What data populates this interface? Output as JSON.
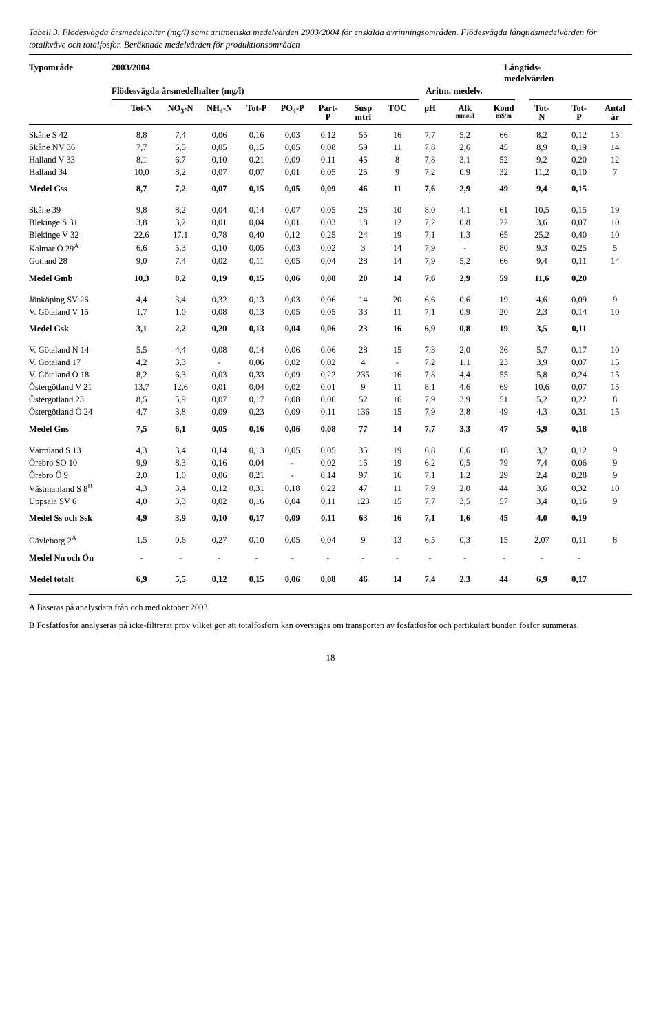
{
  "caption": "Tabell 3. Flödesvägda årsmedelhalter (mg/l) samt aritmetiska medelvärden 2003/2004 för enskilda avrinningsområden. Flödesvägda långtidsmedelvärden för totalkväve och totalfosfor. Beräknade medelvärden för produktionsområden",
  "header": {
    "typomrade": "Typområde",
    "year": "2003/2004",
    "long": "Långtids-\nmedelvärden",
    "flow": "Flödesvägda årsmedelhalter (mg/l)",
    "arit": "Aritm. medelv."
  },
  "columns": [
    "Tot-N",
    "NO3-N",
    "NH4-N",
    "Tot-P",
    "PO4-P",
    "Part-\nP",
    "Susp\nmtrl",
    "TOC",
    "pH",
    "Alk",
    "Kond",
    "Tot-\nN",
    "Tot-\nP",
    "Antal\når"
  ],
  "col_sub": [
    "",
    "",
    "",
    "",
    "",
    "",
    "",
    "",
    "",
    "mmol/l",
    "mS/m",
    "",
    "",
    ""
  ],
  "groups": [
    {
      "rows": [
        [
          "Skåne S 42",
          "8,8",
          "7,4",
          "0,06",
          "0,16",
          "0,03",
          "0,12",
          "55",
          "16",
          "7,7",
          "5,2",
          "66",
          "8,2",
          "0,12",
          "15"
        ],
        [
          "Skåne NV 36",
          "7,7",
          "6,5",
          "0,05",
          "0,15",
          "0,05",
          "0,08",
          "59",
          "11",
          "7,8",
          "2,6",
          "45",
          "8,9",
          "0,19",
          "14"
        ],
        [
          "Halland V 33",
          "8,1",
          "6,7",
          "0,10",
          "0,21",
          "0,09",
          "0,11",
          "45",
          "8",
          "7,8",
          "3,1",
          "52",
          "9,2",
          "0,20",
          "12"
        ],
        [
          "Halland 34",
          "10,0",
          "8,2",
          "0,07",
          "0,07",
          "0,01",
          "0,05",
          "25",
          "9",
          "7,2",
          "0,9",
          "32",
          "11,2",
          "0,10",
          "7"
        ]
      ],
      "medel": [
        "Medel Gss",
        "8,7",
        "7,2",
        "0,07",
        "0,15",
        "0,05",
        "0,09",
        "46",
        "11",
        "7,6",
        "2,9",
        "49",
        "9,4",
        "0,15",
        ""
      ]
    },
    {
      "rows": [
        [
          "Skåne 39",
          "9,8",
          "8,2",
          "0,04",
          "0,14",
          "0,07",
          "0,05",
          "26",
          "10",
          "8,0",
          "4,1",
          "61",
          "10,5",
          "0,15",
          "19"
        ],
        [
          "Blekinge S 31",
          "3,8",
          "3,2",
          "0,01",
          "0,04",
          "0,01",
          "0,03",
          "18",
          "12",
          "7,2",
          "0,8",
          "22",
          "3,6",
          "0,07",
          "10"
        ],
        [
          "Blekinge V 32",
          "22,6",
          "17,1",
          "0,78",
          "0,40",
          "0,12",
          "0,25",
          "24",
          "19",
          "7,1",
          "1,3",
          "65",
          "25,2",
          "0,40",
          "10"
        ],
        [
          "Kalmar Ö 29A",
          "6,6",
          "5,3",
          "0,10",
          "0,05",
          "0,03",
          "0,02",
          "3",
          "14",
          "7,9",
          "-",
          "80",
          "9,3",
          "0,25",
          "5"
        ],
        [
          "Gotland 28",
          "9,0",
          "7,4",
          "0,02",
          "0,11",
          "0,05",
          "0,04",
          "28",
          "14",
          "7,9",
          "5,2",
          "66",
          "9,4",
          "0,11",
          "14"
        ]
      ],
      "medel": [
        "Medel Gmb",
        "10,3",
        "8,2",
        "0,19",
        "0,15",
        "0,06",
        "0,08",
        "20",
        "14",
        "7,6",
        "2,9",
        "59",
        "11,6",
        "0,20",
        ""
      ]
    },
    {
      "rows": [
        [
          "Jönköping SV 26",
          "4,4",
          "3,4",
          "0,32",
          "0,13",
          "0,03",
          "0,06",
          "14",
          "20",
          "6,6",
          "0,6",
          "19",
          "4,6",
          "0,09",
          "9"
        ],
        [
          "V. Götaland V 15",
          "1,7",
          "1,0",
          "0,08",
          "0,13",
          "0,05",
          "0,05",
          "33",
          "11",
          "7,1",
          "0,9",
          "20",
          "2,3",
          "0,14",
          "10"
        ]
      ],
      "medel": [
        "Medel Gsk",
        "3,1",
        "2,2",
        "0,20",
        "0,13",
        "0,04",
        "0,06",
        "23",
        "16",
        "6,9",
        "0,8",
        "19",
        "3,5",
        "0,11",
        ""
      ]
    },
    {
      "rows": [
        [
          "V. Götaland  N 14",
          "5,5",
          "4,4",
          "0,08",
          "0,14",
          "0,06",
          "0,06",
          "28",
          "15",
          "7,3",
          "2,0",
          "36",
          "5,7",
          "0,17",
          "10"
        ],
        [
          "V. Götaland 17",
          "4,2",
          "3,3",
          "-",
          "0,06",
          "0,02",
          "0,02",
          "4",
          "-",
          "7,2",
          "1,1",
          "23",
          "3,9",
          "0,07",
          "15"
        ],
        [
          "V. Götaland Ö 18",
          "8,2",
          "6,3",
          "0,03",
          "0,33",
          "0,09",
          "0,22",
          "235",
          "16",
          "7,8",
          "4,4",
          "55",
          "5,8",
          "0,24",
          "15"
        ],
        [
          "Östergötland V 21",
          "13,7",
          "12,6",
          "0,01",
          "0,04",
          "0,02",
          "0,01",
          "9",
          "11",
          "8,1",
          "4,6",
          "69",
          "10,6",
          "0,07",
          "15"
        ],
        [
          "Östergötland 23",
          "8,5",
          "5,9",
          "0,07",
          "0,17",
          "0,08",
          "0,06",
          "52",
          "16",
          "7,9",
          "3,9",
          "51",
          "5,2",
          "0,22",
          "8"
        ],
        [
          "Östergötland Ö 24",
          "4,7",
          "3,8",
          "0,09",
          "0,23",
          "0,09",
          "0,11",
          "136",
          "15",
          "7,9",
          "3,8",
          "49",
          "4,3",
          "0,31",
          "15"
        ]
      ],
      "medel": [
        "Medel Gns",
        "7,5",
        "6,1",
        "0,05",
        "0,16",
        "0,06",
        "0,08",
        "77",
        "14",
        "7,7",
        "3,3",
        "47",
        "5,9",
        "0,18",
        ""
      ]
    },
    {
      "rows": [
        [
          "Värmland S 13",
          "4,3",
          "3,4",
          "0,14",
          "0,13",
          "0,05",
          "0,05",
          "35",
          "19",
          "6,8",
          "0,6",
          "18",
          "3,2",
          "0,12",
          "9"
        ],
        [
          "Örebro SO 10",
          "9,9",
          "8,3",
          "0,16",
          "0,04",
          "-",
          "0,02",
          "15",
          "19",
          "6,2",
          "0,5",
          "79",
          "7,4",
          "0,06",
          "9"
        ],
        [
          "Örebro Ö 9",
          "2,0",
          "1,0",
          "0,06",
          "0,21",
          "-",
          "0,14",
          "97",
          "16",
          "7,1",
          "1,2",
          "29",
          "2,4",
          "0,28",
          "9"
        ],
        [
          "Västmanland S 8B",
          "4,3",
          "3,4",
          "0,12",
          "0,31",
          "0,18",
          "0,22",
          "47",
          "11",
          "7,9",
          "2,0",
          "44",
          "3,6",
          "0,32",
          "10"
        ],
        [
          "Uppsala SV 6",
          "4,0",
          "3,3",
          "0,02",
          "0,16",
          "0,04",
          "0,11",
          "123",
          "15",
          "7,7",
          "3,5",
          "57",
          "3,4",
          "0,16",
          "9"
        ]
      ],
      "medel": [
        "Medel Ss och Ssk",
        "4,9",
        "3,9",
        "0,10",
        "0,17",
        "0,09",
        "0,11",
        "63",
        "16",
        "7,1",
        "1,6",
        "45",
        "4,0",
        "0,19",
        ""
      ]
    },
    {
      "rows": [
        [
          "Gävleborg 2A",
          "1,5",
          "0,6",
          "0,27",
          "0,10",
          "0,05",
          "0,04",
          "9",
          "13",
          "6,5",
          "0,3",
          "15",
          "2,07",
          "0,11",
          "8"
        ]
      ],
      "medel": [
        "Medel Nn och Ön",
        "-",
        "-",
        "-",
        "-",
        "-",
        "-",
        "-",
        "-",
        "-",
        "-",
        "-",
        "-",
        "-",
        ""
      ]
    }
  ],
  "total": [
    "Medel totalt",
    "6,9",
    "5,5",
    "0,12",
    "0,15",
    "0,06",
    "0,08",
    "46",
    "14",
    "7,4",
    "2,3",
    "44",
    "6,9",
    "0,17",
    ""
  ],
  "footnotes": [
    "A Baseras på analysdata från och med oktober 2003.",
    "B Fosfatfosfor analyseras på icke-filtrerat prov vilket gör att totalfosforn kan överstigas om transporten av fosfatfosfor och partikulärt bunden fosfor summeras."
  ],
  "pagenum": "18",
  "sup_labels": {
    "A": "A",
    "B": "B"
  }
}
